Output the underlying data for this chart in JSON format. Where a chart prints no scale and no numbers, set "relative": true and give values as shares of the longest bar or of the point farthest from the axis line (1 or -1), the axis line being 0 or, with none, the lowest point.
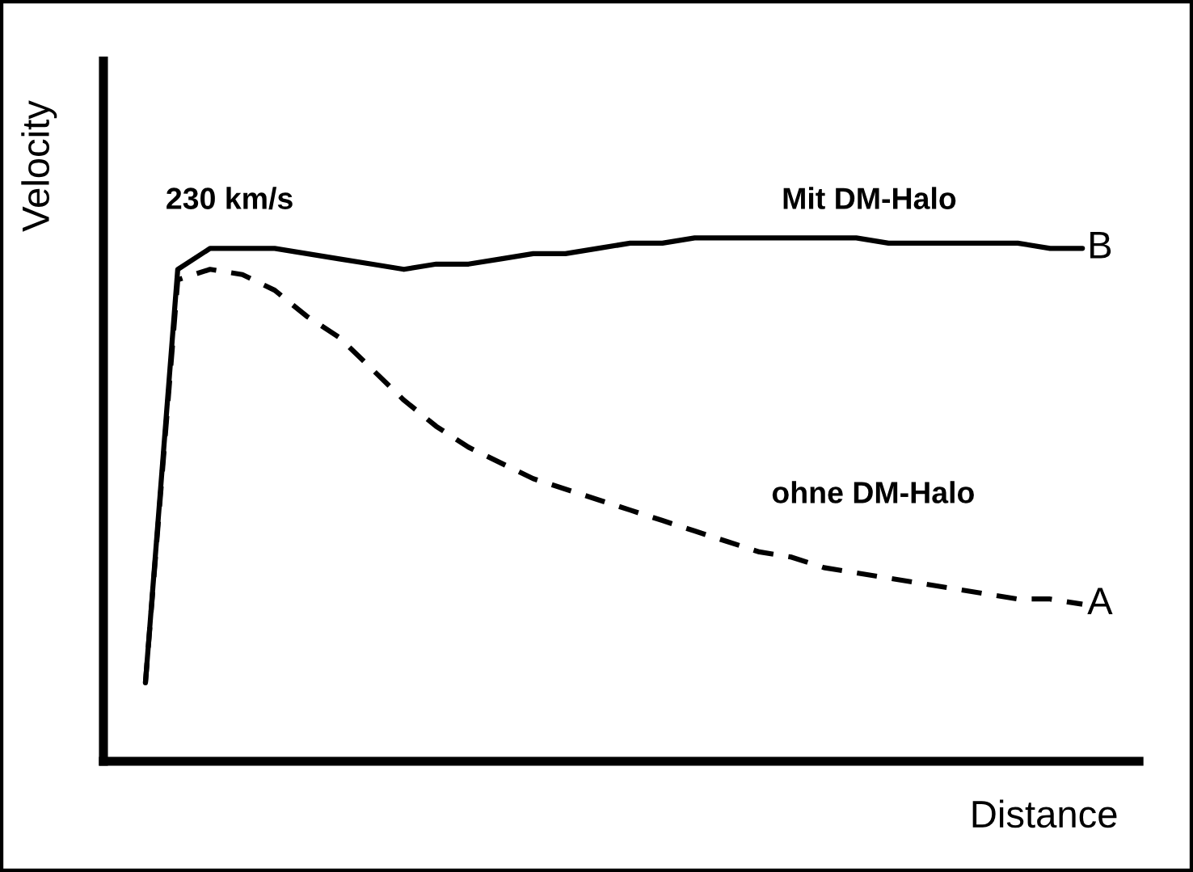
{
  "chart_data": {
    "type": "line",
    "relative": true,
    "xlabel": "Distance",
    "ylabel": "Velocity",
    "categories": [
      null,
      null,
      null,
      null,
      null,
      null,
      null,
      null,
      null,
      null,
      null,
      null,
      null,
      null,
      null,
      null,
      null,
      null,
      null,
      null,
      null,
      null,
      null,
      null,
      null,
      null,
      null,
      null,
      null,
      null
    ],
    "series": [
      {
        "name": "B",
        "color": "#000000",
        "line_style": "solid",
        "values": [
          0.15,
          0.94,
          0.98,
          0.98,
          0.98,
          0.97,
          0.96,
          0.95,
          0.94,
          0.95,
          0.95,
          0.96,
          0.97,
          0.97,
          0.98,
          0.99,
          0.99,
          1.0,
          1.0,
          1.0,
          1.0,
          1.0,
          1.0,
          0.99,
          0.99,
          0.99,
          0.99,
          0.99,
          0.98,
          0.98
        ]
      },
      {
        "name": "A",
        "color": "#000000",
        "line_style": "dashed",
        "values": [
          0.15,
          0.92,
          0.94,
          0.93,
          0.9,
          0.85,
          0.81,
          0.75,
          0.69,
          0.64,
          0.6,
          0.57,
          0.54,
          0.52,
          0.5,
          0.48,
          0.46,
          0.44,
          0.42,
          0.4,
          0.39,
          0.37,
          0.36,
          0.35,
          0.34,
          0.33,
          0.32,
          0.31,
          0.31,
          0.3
        ]
      }
    ],
    "annotations": [
      "230 km/s",
      "Mit DM-Halo",
      "ohne DM-Halo"
    ],
    "legend": false,
    "marker": "none"
  }
}
